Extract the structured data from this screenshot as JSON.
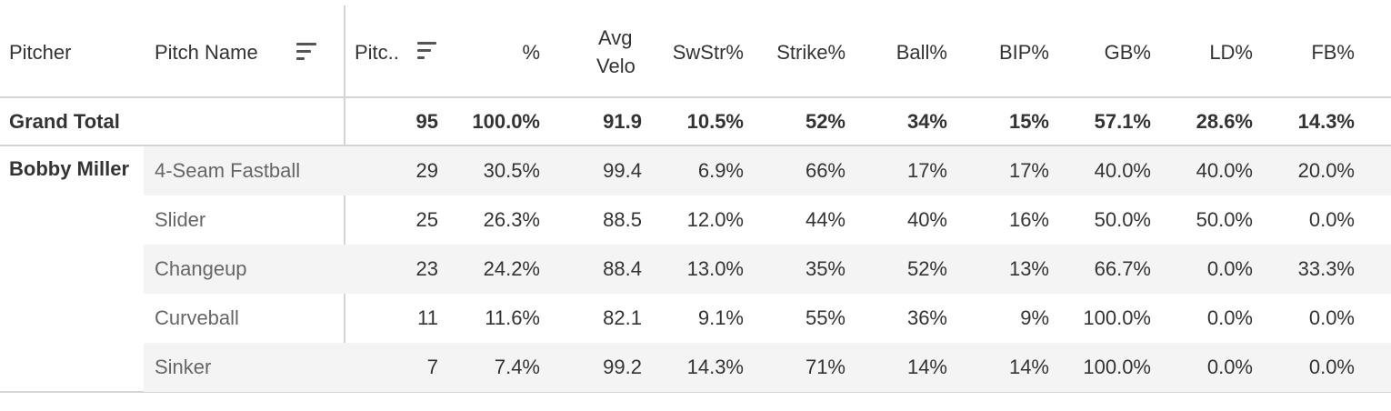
{
  "headers": {
    "pitcher": "Pitcher",
    "pitch_name": "Pitch Name",
    "pitches": "Pitc..",
    "pct": "%",
    "avg_velo_line1": "Avg",
    "avg_velo_line2": "Velo",
    "swstr": "SwStr%",
    "strike": "Strike%",
    "ball": "Ball%",
    "bip": "BIP%",
    "gb": "GB%",
    "ld": "LD%",
    "fb": "FB%"
  },
  "grand_total": {
    "label": "Grand Total",
    "pitches": "95",
    "pct": "100.0%",
    "avg_velo": "91.9",
    "swstr": "10.5%",
    "strike": "52%",
    "ball": "34%",
    "bip": "15%",
    "gb": "57.1%",
    "ld": "28.6%",
    "fb": "14.3%"
  },
  "pitcher": "Bobby Miller",
  "rows": [
    {
      "pitch_name": "4-Seam Fastball",
      "pitches": "29",
      "pct": "30.5%",
      "avg_velo": "99.4",
      "swstr": "6.9%",
      "strike": "66%",
      "ball": "17%",
      "bip": "17%",
      "gb": "40.0%",
      "ld": "40.0%",
      "fb": "20.0%"
    },
    {
      "pitch_name": "Slider",
      "pitches": "25",
      "pct": "26.3%",
      "avg_velo": "88.5",
      "swstr": "12.0%",
      "strike": "44%",
      "ball": "40%",
      "bip": "16%",
      "gb": "50.0%",
      "ld": "50.0%",
      "fb": "0.0%"
    },
    {
      "pitch_name": "Changeup",
      "pitches": "23",
      "pct": "24.2%",
      "avg_velo": "88.4",
      "swstr": "13.0%",
      "strike": "35%",
      "ball": "52%",
      "bip": "13%",
      "gb": "66.7%",
      "ld": "0.0%",
      "fb": "33.3%"
    },
    {
      "pitch_name": "Curveball",
      "pitches": "11",
      "pct": "11.6%",
      "avg_velo": "82.1",
      "swstr": "9.1%",
      "strike": "55%",
      "ball": "36%",
      "bip": "9%",
      "gb": "100.0%",
      "ld": "0.0%",
      "fb": "0.0%"
    },
    {
      "pitch_name": "Sinker",
      "pitches": "7",
      "pct": "7.4%",
      "avg_velo": "99.2",
      "swstr": "14.3%",
      "strike": "71%",
      "ball": "14%",
      "bip": "14%",
      "gb": "100.0%",
      "ld": "0.0%",
      "fb": "0.0%"
    }
  ],
  "icons": {
    "sort": "sort-descending-icon"
  },
  "colors": {
    "band": "#f4f4f4",
    "grid": "#d4d4d4",
    "text": "#333333",
    "pitch_text": "#666666"
  }
}
